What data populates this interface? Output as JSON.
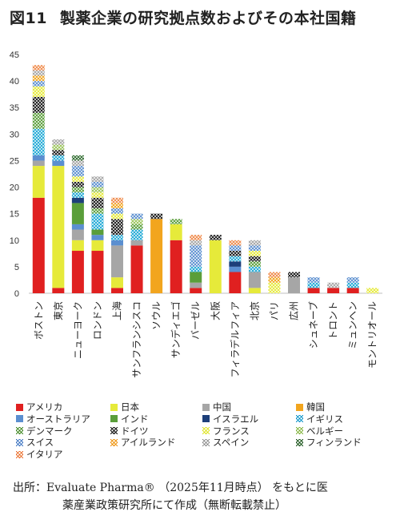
{
  "title": {
    "number": "図11",
    "text": "製薬企業の研究拠点数およびその本社国籍"
  },
  "source": {
    "line1": "出所：Evaluate Pharma® （2025年11月時点） をもとに医",
    "line2": "薬産業政策研究所にて作成（無断転載禁止）"
  },
  "chart_data": {
    "type": "bar",
    "stacked": true,
    "ylim": [
      0,
      45
    ],
    "yticks": [
      0,
      5,
      10,
      15,
      20,
      25,
      30,
      35,
      40,
      45
    ],
    "grid": false,
    "legend_position": "bottom",
    "categories": [
      "ボストン",
      "東京",
      "ニューヨーク",
      "ロンドン",
      "上海",
      "サンフランシスコ",
      "ソウル",
      "サンディエゴ",
      "バーゼル",
      "大阪",
      "フィラデルフィア",
      "北京",
      "パリ",
      "広州",
      "シュネーブ",
      "トロント",
      "ミュンヘン",
      "モントリオール"
    ],
    "series": [
      {
        "name": "アメリカ",
        "color": "#e02020",
        "pattern": "solid",
        "values": [
          18,
          1,
          8,
          8,
          1,
          9,
          0,
          10,
          1,
          0,
          4,
          0,
          0,
          0,
          1,
          1,
          1,
          0
        ]
      },
      {
        "name": "日本",
        "color": "#e6ea3a",
        "pattern": "solid",
        "values": [
          6,
          23,
          2,
          2,
          2,
          0,
          0,
          3,
          0,
          10,
          0,
          1,
          0,
          0,
          0,
          0,
          0,
          0
        ]
      },
      {
        "name": "中国",
        "color": "#a6a6a6",
        "pattern": "solid",
        "values": [
          1,
          0,
          2,
          0,
          6,
          1,
          0,
          0,
          1,
          0,
          0,
          3,
          0,
          3,
          0,
          0,
          0,
          0
        ]
      },
      {
        "name": "韓国",
        "color": "#f2a51e",
        "pattern": "solid",
        "values": [
          0,
          0,
          0,
          0,
          0,
          0,
          14,
          0,
          0,
          0,
          0,
          0,
          0,
          0,
          0,
          0,
          0,
          0
        ]
      },
      {
        "name": "オーストラリア",
        "color": "#5b8fd0",
        "pattern": "solid",
        "values": [
          1,
          1,
          1,
          1,
          1,
          0,
          0,
          0,
          0,
          0,
          1,
          0,
          0,
          0,
          0,
          0,
          0,
          0
        ]
      },
      {
        "name": "インド",
        "color": "#5a9e3a",
        "pattern": "solid",
        "values": [
          0,
          0,
          4,
          1,
          0,
          0,
          0,
          0,
          2,
          0,
          0,
          0,
          0,
          0,
          0,
          0,
          0,
          0
        ]
      },
      {
        "name": "イスラエル",
        "color": "#1d3f7a",
        "pattern": "solid",
        "values": [
          0,
          0,
          1,
          0,
          0,
          0,
          0,
          0,
          0,
          0,
          1,
          0,
          0,
          0,
          0,
          0,
          0,
          0
        ]
      },
      {
        "name": "イギリス",
        "color": "#1fa9d6",
        "pattern": "cross",
        "values": [
          5,
          1,
          1,
          3,
          1,
          2,
          0,
          0,
          1,
          0,
          1,
          1,
          0,
          0,
          1,
          0,
          1,
          0
        ]
      },
      {
        "name": "デンマーク",
        "color": "#5a9e3a",
        "pattern": "cross",
        "values": [
          3,
          0,
          1,
          1,
          0,
          1,
          0,
          1,
          0,
          0,
          0,
          1,
          0,
          0,
          0,
          0,
          0,
          0
        ]
      },
      {
        "name": "ドイツ",
        "color": "#1a1a1a",
        "pattern": "cross",
        "values": [
          3,
          1,
          1,
          2,
          3,
          0,
          1,
          0,
          0,
          1,
          1,
          1,
          0,
          1,
          0,
          0,
          0,
          0
        ]
      },
      {
        "name": "フランス",
        "color": "#e6ea3a",
        "pattern": "cross",
        "values": [
          2,
          0,
          1,
          1,
          1,
          0,
          0,
          0,
          0,
          0,
          0,
          1,
          2,
          0,
          0,
          0,
          0,
          1
        ]
      },
      {
        "name": "ベルギー",
        "color": "#9bc55a",
        "pattern": "cross",
        "values": [
          0,
          1,
          0,
          1,
          0,
          1,
          0,
          0,
          0,
          0,
          0,
          0,
          0,
          0,
          0,
          0,
          0,
          0
        ]
      },
      {
        "name": "スイス",
        "color": "#5b8fd0",
        "pattern": "cross",
        "values": [
          1,
          0,
          2,
          1,
          1,
          1,
          0,
          0,
          4,
          0,
          1,
          1,
          0,
          0,
          1,
          0,
          1,
          0
        ]
      },
      {
        "name": "アイルランド",
        "color": "#f2a51e",
        "pattern": "cross",
        "values": [
          1,
          0,
          0,
          0,
          1,
          0,
          0,
          0,
          0,
          0,
          0,
          0,
          1,
          0,
          0,
          0,
          0,
          0
        ]
      },
      {
        "name": "スペイン",
        "color": "#a6a6a6",
        "pattern": "cross",
        "values": [
          1,
          1,
          1,
          1,
          0,
          0,
          0,
          0,
          1,
          0,
          0,
          1,
          0,
          0,
          0,
          1,
          0,
          0
        ]
      },
      {
        "name": "フィンランド",
        "color": "#2e6b2e",
        "pattern": "cross",
        "values": [
          0,
          0,
          1,
          0,
          0,
          0,
          0,
          0,
          0,
          0,
          0,
          0,
          0,
          0,
          0,
          0,
          0,
          0
        ]
      },
      {
        "name": "イタリア",
        "color": "#f08a4a",
        "pattern": "cross",
        "values": [
          1,
          0,
          0,
          0,
          1,
          0,
          0,
          0,
          1,
          0,
          1,
          0,
          1,
          0,
          0,
          0,
          0,
          0
        ]
      }
    ]
  }
}
